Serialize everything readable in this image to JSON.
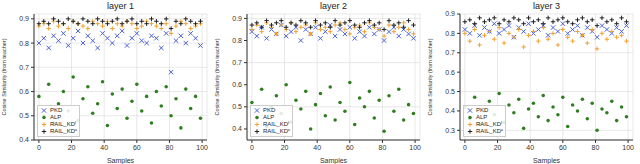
{
  "chart_data": [
    {
      "type": "scatter",
      "title": "layer 1",
      "x_label": "Samples",
      "y_label": "Cosine Similarity (from teacher)",
      "xlim": [
        -3,
        103
      ],
      "xticks": [
        0,
        20,
        40,
        60,
        80,
        100
      ],
      "ylim": [
        0.4,
        0.92
      ],
      "yticks": [
        0.4,
        0.5,
        0.6,
        0.7,
        0.8,
        0.9
      ],
      "grid": true,
      "legend": "lower left",
      "x": [
        0,
        3,
        6,
        9,
        12,
        15,
        18,
        21,
        24,
        27,
        30,
        33,
        36,
        39,
        42,
        45,
        48,
        51,
        54,
        57,
        60,
        63,
        66,
        69,
        72,
        75,
        78,
        81,
        84,
        87,
        90,
        93,
        96,
        99
      ],
      "series": [
        {
          "name": "PKD",
          "color": "#4a5fd6",
          "marker": "x",
          "values": [
            0.8,
            0.82,
            0.78,
            0.83,
            0.81,
            0.84,
            0.79,
            0.82,
            0.85,
            0.8,
            0.83,
            0.81,
            0.78,
            0.84,
            0.82,
            0.8,
            0.83,
            0.85,
            0.79,
            0.82,
            0.84,
            0.81,
            0.8,
            0.83,
            0.82,
            0.78,
            0.84,
            0.68,
            0.81,
            0.83,
            0.8,
            0.84,
            0.82,
            0.79
          ]
        },
        {
          "name": "ALP",
          "color": "#2e7d1f",
          "marker": "circle",
          "values": [
            0.58,
            0.5,
            0.63,
            0.47,
            0.55,
            0.6,
            0.52,
            0.66,
            0.48,
            0.57,
            0.62,
            0.51,
            0.55,
            0.64,
            0.46,
            0.59,
            0.53,
            0.61,
            0.49,
            0.56,
            0.63,
            0.52,
            0.58,
            0.47,
            0.6,
            0.54,
            0.62,
            0.5,
            0.57,
            0.45,
            0.61,
            0.53,
            0.58,
            0.49
          ]
        },
        {
          "name": "RAIL_KDˡ",
          "color": "#f0a030",
          "marker": "plus",
          "values": [
            0.87,
            0.88,
            0.86,
            0.89,
            0.87,
            0.88,
            0.86,
            0.89,
            0.88,
            0.87,
            0.86,
            0.89,
            0.88,
            0.87,
            0.89,
            0.86,
            0.88,
            0.87,
            0.89,
            0.88,
            0.86,
            0.87,
            0.89,
            0.88,
            0.87,
            0.86,
            0.88,
            0.84,
            0.87,
            0.89,
            0.88,
            0.86,
            0.87,
            0.88
          ]
        },
        {
          "name": "RAIL_KDᶜ",
          "color": "#222222",
          "marker": "plus",
          "values": [
            0.88,
            0.89,
            0.88,
            0.9,
            0.89,
            0.88,
            0.9,
            0.89,
            0.88,
            0.9,
            0.89,
            0.88,
            0.9,
            0.89,
            0.88,
            0.89,
            0.9,
            0.88,
            0.89,
            0.9,
            0.88,
            0.89,
            0.88,
            0.9,
            0.89,
            0.88,
            0.9,
            0.86,
            0.89,
            0.88,
            0.9,
            0.89,
            0.88,
            0.89
          ]
        }
      ]
    },
    {
      "type": "scatter",
      "title": "layer 2",
      "x_label": "Samples",
      "y_label": "Cosine Similarity (from teacher)",
      "xlim": [
        -3,
        103
      ],
      "xticks": [
        0,
        20,
        40,
        60,
        80,
        100
      ],
      "ylim": [
        0.35,
        0.92
      ],
      "yticks": [
        0.4,
        0.5,
        0.6,
        0.7,
        0.8,
        0.9
      ],
      "grid": true,
      "legend": "lower left",
      "x": [
        0,
        3,
        6,
        9,
        12,
        15,
        18,
        21,
        24,
        27,
        30,
        33,
        36,
        39,
        42,
        45,
        48,
        51,
        54,
        57,
        60,
        63,
        66,
        69,
        72,
        75,
        78,
        81,
        84,
        87,
        90,
        93,
        96,
        99
      ],
      "series": [
        {
          "name": "PKD",
          "color": "#4a5fd6",
          "marker": "x",
          "values": [
            0.84,
            0.82,
            0.86,
            0.81,
            0.85,
            0.83,
            0.87,
            0.82,
            0.84,
            0.86,
            0.8,
            0.85,
            0.83,
            0.86,
            0.81,
            0.84,
            0.87,
            0.82,
            0.85,
            0.83,
            0.86,
            0.81,
            0.84,
            0.82,
            0.86,
            0.83,
            0.85,
            0.8,
            0.84,
            0.86,
            0.82,
            0.85,
            0.83,
            0.81
          ]
        },
        {
          "name": "ALP",
          "color": "#2e7d1f",
          "marker": "circle",
          "values": [
            0.52,
            0.45,
            0.58,
            0.41,
            0.5,
            0.55,
            0.47,
            0.6,
            0.43,
            0.53,
            0.49,
            0.57,
            0.4,
            0.51,
            0.56,
            0.46,
            0.59,
            0.44,
            0.52,
            0.48,
            0.61,
            0.42,
            0.54,
            0.5,
            0.57,
            0.45,
            0.53,
            0.39,
            0.55,
            0.48,
            0.58,
            0.44,
            0.51,
            0.47
          ]
        },
        {
          "name": "RAIL_KDˡ",
          "color": "#f0a030",
          "marker": "plus",
          "values": [
            0.85,
            0.87,
            0.84,
            0.88,
            0.86,
            0.83,
            0.87,
            0.85,
            0.88,
            0.84,
            0.86,
            0.87,
            0.83,
            0.88,
            0.85,
            0.86,
            0.84,
            0.87,
            0.88,
            0.85,
            0.83,
            0.86,
            0.87,
            0.84,
            0.88,
            0.86,
            0.85,
            0.82,
            0.87,
            0.84,
            0.86,
            0.88,
            0.85,
            0.83
          ]
        },
        {
          "name": "RAIL_KDᶜ",
          "color": "#222222",
          "marker": "plus",
          "values": [
            0.87,
            0.88,
            0.86,
            0.89,
            0.87,
            0.88,
            0.89,
            0.86,
            0.88,
            0.87,
            0.89,
            0.88,
            0.86,
            0.89,
            0.87,
            0.88,
            0.86,
            0.89,
            0.87,
            0.88,
            0.89,
            0.87,
            0.86,
            0.88,
            0.89,
            0.87,
            0.88,
            0.85,
            0.89,
            0.87,
            0.88,
            0.86,
            0.89,
            0.87
          ]
        }
      ]
    },
    {
      "type": "scatter",
      "title": "layer 3",
      "x_label": "Samples",
      "y_label": "Cosine Similarity (from teacher)",
      "xlim": [
        -3,
        103
      ],
      "xticks": [
        0,
        20,
        40,
        60,
        80,
        100
      ],
      "ylim": [
        0.25,
        0.9
      ],
      "yticks": [
        0.3,
        0.4,
        0.5,
        0.6,
        0.7,
        0.8,
        0.9
      ],
      "grid": true,
      "legend": "lower left",
      "x": [
        0,
        3,
        6,
        9,
        12,
        15,
        18,
        21,
        24,
        27,
        30,
        33,
        36,
        39,
        42,
        45,
        48,
        51,
        54,
        57,
        60,
        63,
        66,
        69,
        72,
        75,
        78,
        81,
        84,
        87,
        90,
        93,
        96,
        99
      ],
      "series": [
        {
          "name": "PKD",
          "color": "#4a5fd6",
          "marker": "x",
          "values": [
            0.82,
            0.8,
            0.84,
            0.79,
            0.83,
            0.81,
            0.85,
            0.8,
            0.82,
            0.84,
            0.78,
            0.83,
            0.81,
            0.85,
            0.8,
            0.82,
            0.84,
            0.79,
            0.83,
            0.81,
            0.85,
            0.8,
            0.82,
            0.84,
            0.79,
            0.83,
            0.81,
            0.78,
            0.84,
            0.82,
            0.8,
            0.83,
            0.81,
            0.84
          ]
        },
        {
          "name": "ALP",
          "color": "#2e7d1f",
          "marker": "circle",
          "values": [
            0.42,
            0.36,
            0.47,
            0.33,
            0.4,
            0.45,
            0.38,
            0.49,
            0.34,
            0.43,
            0.39,
            0.46,
            0.31,
            0.41,
            0.44,
            0.37,
            0.48,
            0.35,
            0.42,
            0.38,
            0.47,
            0.32,
            0.43,
            0.4,
            0.46,
            0.36,
            0.44,
            0.3,
            0.41,
            0.39,
            0.45,
            0.35,
            0.42,
            0.37
          ]
        },
        {
          "name": "RAIL_KDˡ",
          "color": "#f0a030",
          "marker": "plus",
          "values": [
            0.8,
            0.76,
            0.82,
            0.74,
            0.79,
            0.81,
            0.77,
            0.83,
            0.75,
            0.8,
            0.78,
            0.82,
            0.73,
            0.79,
            0.81,
            0.76,
            0.83,
            0.77,
            0.8,
            0.74,
            0.82,
            0.78,
            0.76,
            0.81,
            0.79,
            0.75,
            0.82,
            0.72,
            0.8,
            0.77,
            0.81,
            0.78,
            0.79,
            0.76
          ]
        },
        {
          "name": "RAIL_KDᶜ",
          "color": "#222222",
          "marker": "plus",
          "values": [
            0.86,
            0.87,
            0.85,
            0.88,
            0.86,
            0.87,
            0.88,
            0.85,
            0.87,
            0.86,
            0.88,
            0.87,
            0.85,
            0.88,
            0.86,
            0.87,
            0.85,
            0.88,
            0.86,
            0.87,
            0.88,
            0.86,
            0.85,
            0.87,
            0.88,
            0.86,
            0.87,
            0.84,
            0.88,
            0.86,
            0.87,
            0.85,
            0.88,
            0.86
          ]
        }
      ]
    }
  ]
}
